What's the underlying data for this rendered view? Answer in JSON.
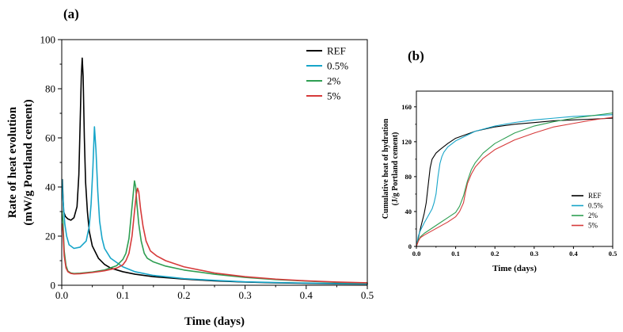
{
  "chart_data": [
    {
      "panel_label": "(a)",
      "type": "line",
      "title": "",
      "xlabel": "Time (days)",
      "ylabel_line1": "Rate of heat evolution",
      "ylabel_line2": "(mW/g Portland cement)",
      "xlim": [
        0,
        0.5
      ],
      "ylim": [
        0,
        100
      ],
      "xticks": [
        "0.0",
        "0.1",
        "0.2",
        "0.3",
        "0.4",
        "0.5"
      ],
      "yticks": [
        "0",
        "20",
        "40",
        "60",
        "80",
        "100"
      ],
      "legend_position": "top-right",
      "series": [
        {
          "name": "REF",
          "color": "#000000",
          "points": [
            [
              0.001,
              43
            ],
            [
              0.003,
              30
            ],
            [
              0.006,
              28
            ],
            [
              0.01,
              27
            ],
            [
              0.015,
              26.5
            ],
            [
              0.02,
              27.5
            ],
            [
              0.025,
              32
            ],
            [
              0.028,
              45
            ],
            [
              0.03,
              65
            ],
            [
              0.032,
              85
            ],
            [
              0.0335,
              92.5
            ],
            [
              0.035,
              85
            ],
            [
              0.037,
              60
            ],
            [
              0.039,
              42
            ],
            [
              0.042,
              30
            ],
            [
              0.045,
              22
            ],
            [
              0.05,
              16
            ],
            [
              0.06,
              11
            ],
            [
              0.07,
              8.5
            ],
            [
              0.08,
              7
            ],
            [
              0.1,
              5.5
            ],
            [
              0.12,
              4.5
            ],
            [
              0.15,
              3.5
            ],
            [
              0.2,
              2.5
            ],
            [
              0.25,
              1.8
            ],
            [
              0.3,
              1.3
            ],
            [
              0.35,
              1
            ],
            [
              0.4,
              0.8
            ],
            [
              0.45,
              0.6
            ],
            [
              0.5,
              0.5
            ]
          ]
        },
        {
          "name": "0.5%",
          "color": "#17a5c9",
          "points": [
            [
              0.0005,
              43
            ],
            [
              0.002,
              35
            ],
            [
              0.005,
              25
            ],
            [
              0.008,
              20
            ],
            [
              0.012,
              16.5
            ],
            [
              0.02,
              15
            ],
            [
              0.03,
              15.5
            ],
            [
              0.04,
              18
            ],
            [
              0.045,
              24
            ],
            [
              0.048,
              33
            ],
            [
              0.051,
              48
            ],
            [
              0.0535,
              64.5
            ],
            [
              0.056,
              55
            ],
            [
              0.059,
              38
            ],
            [
              0.062,
              26
            ],
            [
              0.066,
              19
            ],
            [
              0.07,
              15
            ],
            [
              0.08,
              11
            ],
            [
              0.1,
              7.5
            ],
            [
              0.12,
              5.5
            ],
            [
              0.15,
              4
            ],
            [
              0.2,
              2.7
            ],
            [
              0.25,
              2
            ],
            [
              0.3,
              1.4
            ],
            [
              0.35,
              1.1
            ],
            [
              0.4,
              0.9
            ],
            [
              0.45,
              0.7
            ],
            [
              0.5,
              0.6
            ]
          ]
        },
        {
          "name": "2%",
          "color": "#2e9e52",
          "points": [
            [
              0.0005,
              30
            ],
            [
              0.002,
              26
            ],
            [
              0.004,
              14
            ],
            [
              0.007,
              8
            ],
            [
              0.01,
              5.8
            ],
            [
              0.015,
              5
            ],
            [
              0.02,
              4.8
            ],
            [
              0.03,
              4.9
            ],
            [
              0.05,
              5.4
            ],
            [
              0.07,
              6.2
            ],
            [
              0.09,
              8
            ],
            [
              0.1,
              10.5
            ],
            [
              0.105,
              13
            ],
            [
              0.11,
              19
            ],
            [
              0.115,
              32
            ],
            [
              0.119,
              42.5
            ],
            [
              0.121,
              40
            ],
            [
              0.123,
              33
            ],
            [
              0.126,
              25
            ],
            [
              0.13,
              18
            ],
            [
              0.135,
              13
            ],
            [
              0.14,
              11
            ],
            [
              0.15,
              9.5
            ],
            [
              0.17,
              7.8
            ],
            [
              0.2,
              6.2
            ],
            [
              0.25,
              4.5
            ],
            [
              0.3,
              3.2
            ],
            [
              0.35,
              2.3
            ],
            [
              0.4,
              1.7
            ],
            [
              0.45,
              1.2
            ],
            [
              0.5,
              0.9
            ]
          ]
        },
        {
          "name": "5%",
          "color": "#d63a3a",
          "points": [
            [
              0.0005,
              25
            ],
            [
              0.002,
              22
            ],
            [
              0.004,
              12
            ],
            [
              0.007,
              7
            ],
            [
              0.01,
              5.5
            ],
            [
              0.015,
              4.8
            ],
            [
              0.02,
              4.6
            ],
            [
              0.03,
              4.7
            ],
            [
              0.05,
              5.2
            ],
            [
              0.07,
              5.9
            ],
            [
              0.09,
              7
            ],
            [
              0.1,
              8.3
            ],
            [
              0.105,
              10
            ],
            [
              0.11,
              13
            ],
            [
              0.115,
              20
            ],
            [
              0.119,
              30
            ],
            [
              0.122,
              37
            ],
            [
              0.124,
              39.5
            ],
            [
              0.126,
              38
            ],
            [
              0.129,
              31
            ],
            [
              0.133,
              24
            ],
            [
              0.138,
              18
            ],
            [
              0.145,
              14
            ],
            [
              0.155,
              12
            ],
            [
              0.17,
              10
            ],
            [
              0.2,
              7.5
            ],
            [
              0.25,
              5
            ],
            [
              0.3,
              3.5
            ],
            [
              0.35,
              2.5
            ],
            [
              0.4,
              1.8
            ],
            [
              0.45,
              1.3
            ],
            [
              0.5,
              1
            ]
          ]
        }
      ]
    },
    {
      "panel_label": "(b)",
      "type": "line",
      "title": "",
      "xlabel": "Time (days)",
      "ylabel_line1": "Cumulative heat of hydration",
      "ylabel_line2": "(J/g Portland cement)",
      "xlim": [
        0,
        0.5
      ],
      "ylim": [
        0,
        178
      ],
      "xticks": [
        "0.0",
        "0.1",
        "0.2",
        "0.3",
        "0.4",
        "0.5"
      ],
      "yticks": [
        "0",
        "40",
        "80",
        "120",
        "160"
      ],
      "legend_position": "bottom-right",
      "series": [
        {
          "name": "REF",
          "color": "#000000",
          "points": [
            [
              0,
              0
            ],
            [
              0.005,
              10
            ],
            [
              0.01,
              20
            ],
            [
              0.02,
              38
            ],
            [
              0.025,
              50
            ],
            [
              0.03,
              70
            ],
            [
              0.035,
              90
            ],
            [
              0.04,
              100
            ],
            [
              0.05,
              107
            ],
            [
              0.06,
              111
            ],
            [
              0.08,
              118
            ],
            [
              0.1,
              124
            ],
            [
              0.15,
              132
            ],
            [
              0.2,
              137
            ],
            [
              0.25,
              140
            ],
            [
              0.3,
              142
            ],
            [
              0.35,
              144
            ],
            [
              0.4,
              145
            ],
            [
              0.45,
              146
            ],
            [
              0.5,
              147
            ]
          ]
        },
        {
          "name": "0.5%",
          "color": "#17a5c9",
          "points": [
            [
              0,
              0
            ],
            [
              0.005,
              12
            ],
            [
              0.01,
              18
            ],
            [
              0.02,
              27
            ],
            [
              0.03,
              35
            ],
            [
              0.04,
              43
            ],
            [
              0.045,
              50
            ],
            [
              0.05,
              60
            ],
            [
              0.055,
              80
            ],
            [
              0.06,
              95
            ],
            [
              0.065,
              103
            ],
            [
              0.07,
              108
            ],
            [
              0.08,
              114
            ],
            [
              0.1,
              121
            ],
            [
              0.15,
              132
            ],
            [
              0.2,
              138
            ],
            [
              0.25,
              142
            ],
            [
              0.3,
              145
            ],
            [
              0.35,
              147
            ],
            [
              0.4,
              149
            ],
            [
              0.45,
              150
            ],
            [
              0.5,
              151
            ]
          ]
        },
        {
          "name": "2%",
          "color": "#2e9e52",
          "points": [
            [
              0,
              0
            ],
            [
              0.005,
              7
            ],
            [
              0.01,
              11
            ],
            [
              0.02,
              15
            ],
            [
              0.04,
              21
            ],
            [
              0.06,
              27
            ],
            [
              0.08,
              33
            ],
            [
              0.1,
              39
            ],
            [
              0.11,
              46
            ],
            [
              0.12,
              58
            ],
            [
              0.13,
              75
            ],
            [
              0.14,
              88
            ],
            [
              0.15,
              96
            ],
            [
              0.17,
              107
            ],
            [
              0.2,
              118
            ],
            [
              0.25,
              130
            ],
            [
              0.3,
              138
            ],
            [
              0.35,
              143
            ],
            [
              0.4,
              147
            ],
            [
              0.45,
              150
            ],
            [
              0.5,
              153
            ]
          ]
        },
        {
          "name": "5%",
          "color": "#d63a3a",
          "points": [
            [
              0,
              0
            ],
            [
              0.005,
              6
            ],
            [
              0.01,
              10
            ],
            [
              0.02,
              13
            ],
            [
              0.04,
              18
            ],
            [
              0.06,
              23
            ],
            [
              0.08,
              28
            ],
            [
              0.1,
              34
            ],
            [
              0.11,
              40
            ],
            [
              0.12,
              50
            ],
            [
              0.125,
              62
            ],
            [
              0.13,
              72
            ],
            [
              0.14,
              83
            ],
            [
              0.15,
              91
            ],
            [
              0.17,
              101
            ],
            [
              0.2,
              111
            ],
            [
              0.25,
              122
            ],
            [
              0.3,
              130
            ],
            [
              0.35,
              137
            ],
            [
              0.4,
              141
            ],
            [
              0.45,
              145
            ],
            [
              0.5,
              148
            ]
          ]
        }
      ]
    }
  ]
}
